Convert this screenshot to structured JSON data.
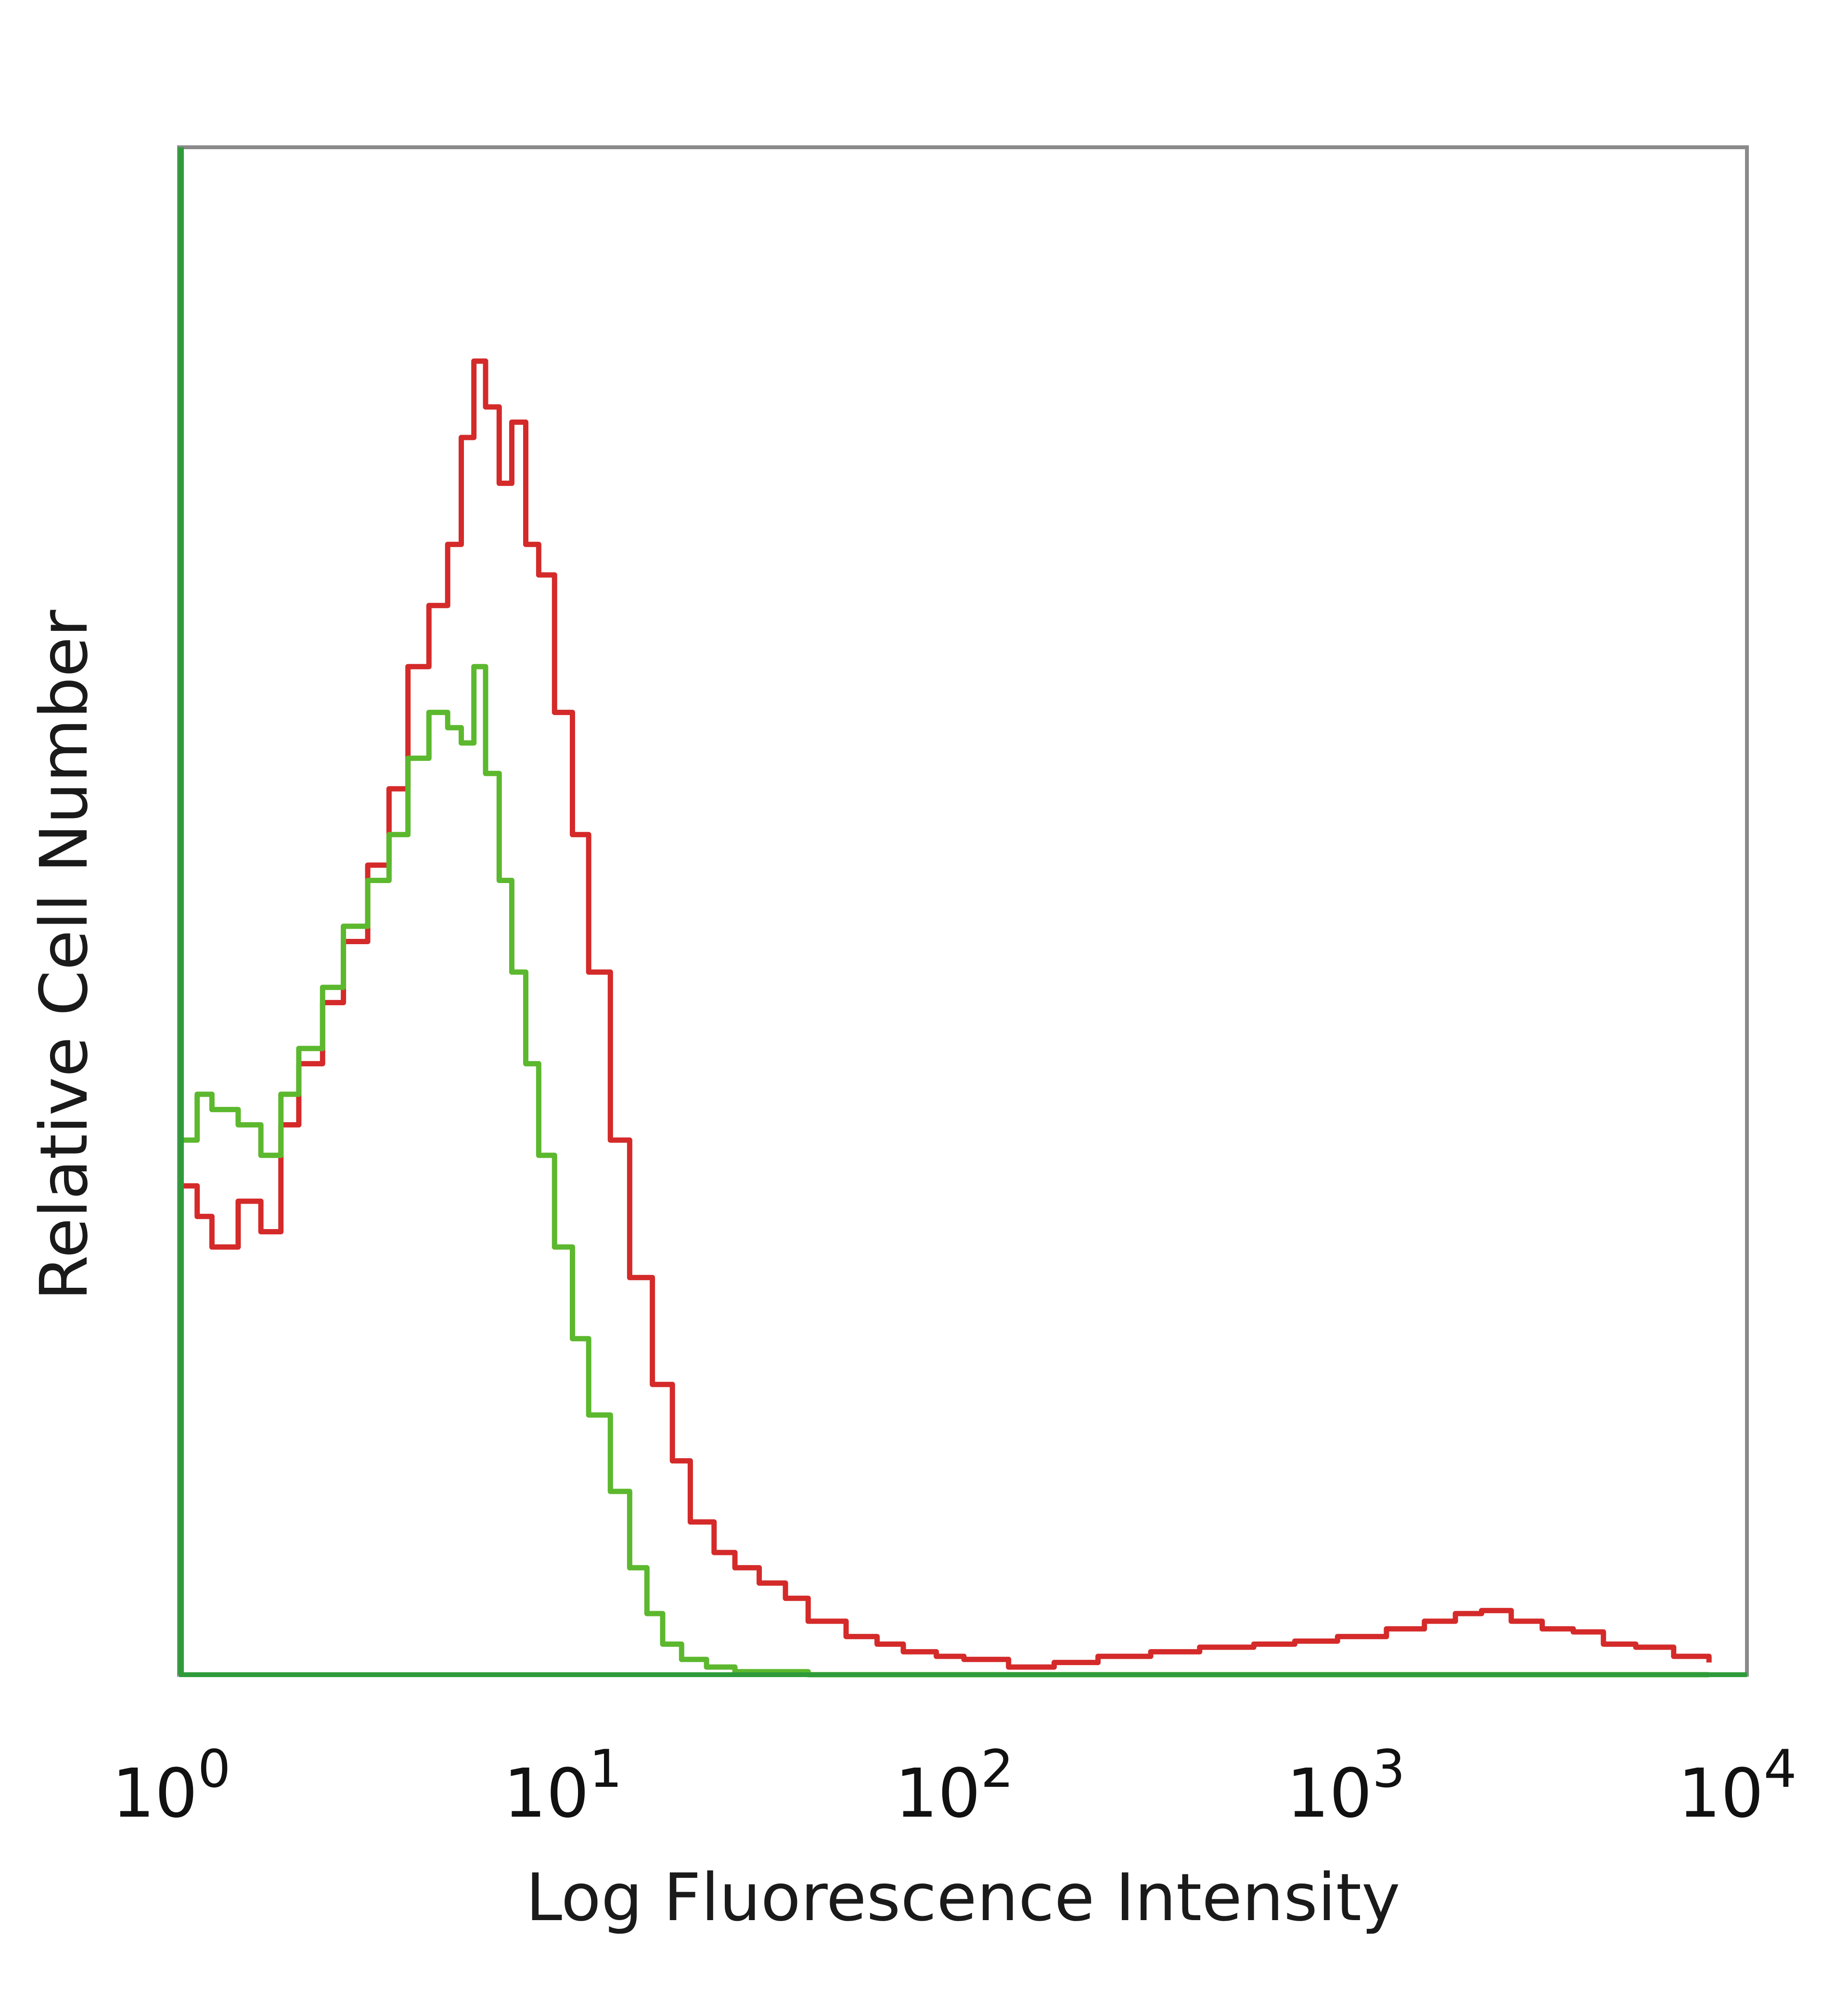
{
  "chart_data": {
    "type": "line",
    "title": "",
    "xlabel": "Log Fluorescence Intensity",
    "ylabel": "Relative Cell Number",
    "xscale": "log",
    "xlim": [
      1,
      10000
    ],
    "ylim": [
      0,
      1
    ],
    "grid": false,
    "legend": "none",
    "x_ticks": [
      {
        "base": "10",
        "exp": "0",
        "value": 1
      },
      {
        "base": "10",
        "exp": "1",
        "value": 10
      },
      {
        "base": "10",
        "exp": "2",
        "value": 100
      },
      {
        "base": "10",
        "exp": "3",
        "value": 1000
      },
      {
        "base": "10",
        "exp": "4",
        "value": 10000
      }
    ],
    "series": [
      {
        "color": "#d42a2a",
        "x": [
          1.0,
          1.1,
          1.2,
          1.4,
          1.6,
          1.8,
          2.0,
          2.3,
          2.6,
          3.0,
          3.4,
          3.8,
          4.3,
          4.8,
          5.2,
          5.6,
          6.0,
          6.5,
          7.0,
          7.6,
          8.2,
          9.0,
          10.0,
          11.0,
          12.5,
          14.0,
          16.0,
          18.0,
          20.0,
          23.0,
          26.0,
          30.0,
          35.0,
          40.0,
          50.0,
          60.0,
          70.0,
          85.0,
          100.0,
          130.0,
          170.0,
          220.0,
          300.0,
          400.0,
          550.0,
          700.0,
          900.0,
          1200.0,
          1500.0,
          1800.0,
          2100.0,
          2500.0,
          3000.0,
          3600.0,
          4300.0,
          5200.0,
          6500.0,
          8000.0
        ],
        "y": [
          0.32,
          0.3,
          0.28,
          0.31,
          0.29,
          0.36,
          0.4,
          0.44,
          0.48,
          0.53,
          0.58,
          0.66,
          0.7,
          0.74,
          0.81,
          0.86,
          0.83,
          0.78,
          0.82,
          0.74,
          0.72,
          0.63,
          0.55,
          0.46,
          0.35,
          0.26,
          0.19,
          0.14,
          0.1,
          0.08,
          0.07,
          0.06,
          0.05,
          0.035,
          0.025,
          0.02,
          0.015,
          0.012,
          0.01,
          0.005,
          0.008,
          0.012,
          0.015,
          0.018,
          0.02,
          0.022,
          0.025,
          0.03,
          0.035,
          0.04,
          0.042,
          0.035,
          0.03,
          0.028,
          0.02,
          0.018,
          0.012,
          0.008
        ]
      },
      {
        "color": "#5cb82e",
        "x": [
          1.0,
          1.1,
          1.2,
          1.4,
          1.6,
          1.8,
          2.0,
          2.3,
          2.6,
          3.0,
          3.4,
          3.8,
          4.3,
          4.8,
          5.2,
          5.6,
          6.0,
          6.5,
          7.0,
          7.6,
          8.2,
          9.0,
          10.0,
          11.0,
          12.5,
          14.0,
          15.5,
          17.0,
          19.0,
          22.0,
          26.0,
          40.0,
          100.0,
          1000.0,
          8000.0
        ],
        "y": [
          0.35,
          0.38,
          0.37,
          0.36,
          0.34,
          0.38,
          0.41,
          0.45,
          0.49,
          0.52,
          0.55,
          0.6,
          0.63,
          0.62,
          0.61,
          0.66,
          0.59,
          0.52,
          0.46,
          0.4,
          0.34,
          0.28,
          0.22,
          0.17,
          0.12,
          0.07,
          0.04,
          0.02,
          0.01,
          0.005,
          0.002,
          0.0,
          0.0,
          0.0,
          0.0
        ]
      }
    ],
    "colors": {
      "frame": "#8a8a8a",
      "left_axis": "#2e9b3a",
      "baseline": "#2e9b3a",
      "text": "#111111"
    }
  }
}
